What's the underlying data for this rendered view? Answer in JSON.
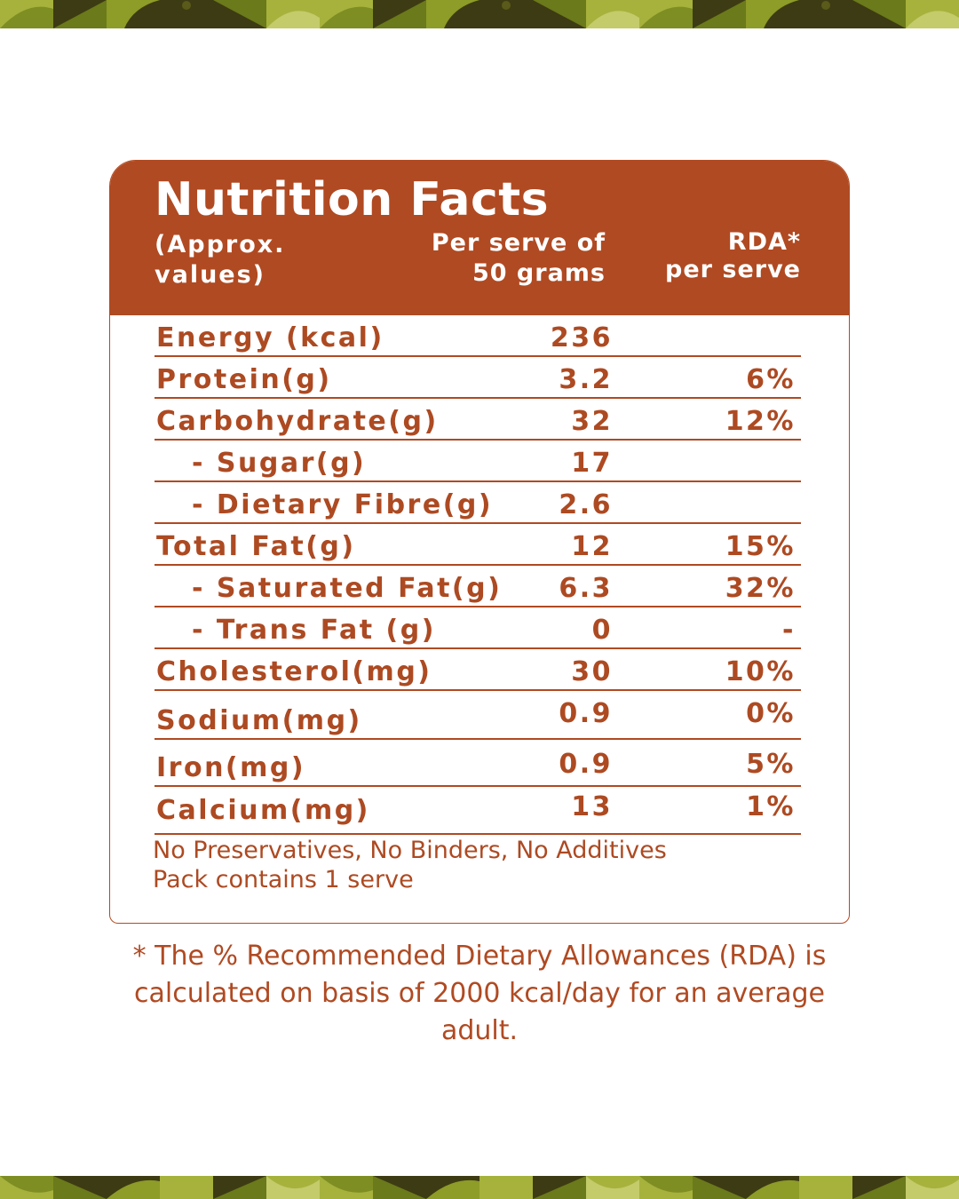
{
  "title": "Nutrition Facts",
  "header": {
    "col1": [
      "(Approx.",
      "values)"
    ],
    "col2": [
      "Per serve of",
      "50 grams"
    ],
    "col3": [
      "RDA*",
      "per serve"
    ]
  },
  "rows": [
    {
      "label": "Energy (kcal)",
      "value": "236",
      "rda": "",
      "sub": false
    },
    {
      "label": "Protein(g)",
      "value": "3.2",
      "rda": "6%",
      "sub": false
    },
    {
      "label": "Carbohydrate(g)",
      "value": "32",
      "rda": "12%",
      "sub": false
    },
    {
      "label": "- Sugar(g)",
      "value": "17",
      "rda": "",
      "sub": true
    },
    {
      "label": "- Dietary Fibre(g)",
      "value": "2.6",
      "rda": "",
      "sub": true
    },
    {
      "label": "Total Fat(g)",
      "value": "12",
      "rda": "15%",
      "sub": false
    },
    {
      "label": "- Saturated Fat(g)",
      "value": "6.3",
      "rda": "32%",
      "sub": true
    },
    {
      "label": "- Trans Fat (g)",
      "value": "0",
      "rda": "-",
      "sub": true
    },
    {
      "label": "Cholesterol(mg)",
      "value": "30",
      "rda": "10%",
      "sub": false
    },
    {
      "label": "Sodium(mg)",
      "value": "0.9",
      "rda": "0%",
      "sub": false
    },
    {
      "label": "Iron(mg)",
      "value": "0.9",
      "rda": "5%",
      "sub": false
    },
    {
      "label": "Calcium(mg)",
      "value": "13",
      "rda": "1%",
      "sub": false
    }
  ],
  "notes": [
    "No Preservatives, No Binders, No Additives",
    "Pack contains 1 serve"
  ],
  "footnote": [
    "* The % Recommended Dietary Allowances (RDA) is",
    "calculated on basis of 2000 kcal/day for an average",
    "adult."
  ],
  "colors": {
    "brand": "#b04a22",
    "olive_dark": "#3b3a12",
    "olive": "#6a7a1a",
    "olive_light": "#a4b03c"
  }
}
